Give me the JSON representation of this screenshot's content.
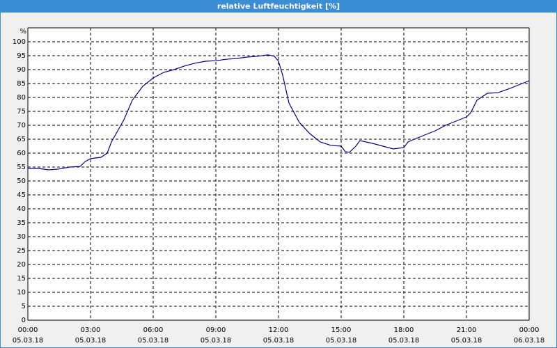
{
  "chart_data": {
    "type": "line",
    "title": "relative Luftfeuchtigkeit [%]",
    "y_unit": "%",
    "x": [
      0,
      0.5,
      1,
      1.5,
      2,
      2.5,
      2.75,
      3,
      3.5,
      3.8,
      4,
      4.3,
      4.6,
      5,
      5.5,
      6,
      6.5,
      7,
      7.5,
      8,
      8.5,
      9,
      9.5,
      10,
      10.5,
      11,
      11.5,
      11.8,
      12,
      12.2,
      12.5,
      13,
      13.5,
      14,
      14.5,
      15,
      15.2,
      15.4,
      15.7,
      15.9,
      16.2,
      16.5,
      17,
      17.5,
      18,
      18.2,
      18.5,
      19,
      19.5,
      20,
      20.5,
      21,
      21.2,
      21.5,
      22,
      22.5,
      23,
      23.5,
      24
    ],
    "series": [
      {
        "name": "relative Luftfeuchtigkeit",
        "color": "#00008b",
        "values": [
          54.5,
          54.5,
          54,
          54.3,
          55,
          55.2,
          57,
          58,
          58.5,
          60,
          64,
          68,
          72,
          79,
          84,
          87,
          89,
          90,
          91.3,
          92.3,
          93,
          93.2,
          93.7,
          94,
          94.5,
          94.8,
          95.3,
          94.8,
          93,
          88,
          78,
          71,
          67,
          64,
          62.8,
          62.5,
          60.5,
          60.3,
          62.5,
          64.5,
          64,
          63.5,
          62.5,
          61.5,
          62,
          64,
          65,
          66.5,
          68,
          70,
          71.5,
          73,
          74.5,
          79,
          81.5,
          81.7,
          83,
          84.5,
          86
        ]
      }
    ],
    "xlim": [
      0,
      24
    ],
    "xticks": [
      {
        "value": 0,
        "label": "00:00"
      },
      {
        "value": 3,
        "label": "03:00"
      },
      {
        "value": 6,
        "label": "06:00"
      },
      {
        "value": 9,
        "label": "09:00"
      },
      {
        "value": 12,
        "label": "12:00"
      },
      {
        "value": 15,
        "label": "15:00"
      },
      {
        "value": 18,
        "label": "18:00"
      },
      {
        "value": 21,
        "label": "21:00"
      },
      {
        "value": 24,
        "label": "00:00"
      }
    ],
    "xtick_dates": [
      "05.03.18",
      "05.03.18",
      "05.03.18",
      "05.03.18",
      "05.03.18",
      "05.03.18",
      "05.03.18",
      "05.03.18",
      "06.03.18"
    ],
    "ylim": [
      0,
      105
    ],
    "yticks": [
      0,
      5,
      10,
      15,
      20,
      25,
      30,
      35,
      40,
      45,
      50,
      55,
      60,
      65,
      70,
      75,
      80,
      85,
      90,
      95,
      100
    ],
    "grid": true
  }
}
